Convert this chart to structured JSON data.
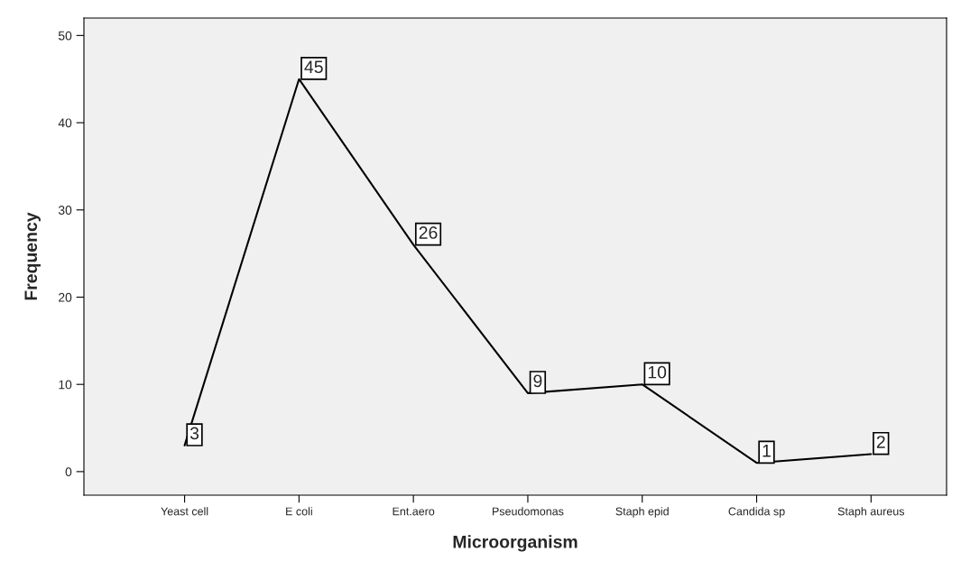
{
  "chart_data": {
    "type": "line",
    "xlabel": "Microorganism",
    "ylabel": "Frequency",
    "categories": [
      "Yeast cell",
      "E coli",
      "Ent.aero",
      "Pseudomonas",
      "Staph epid",
      "Candida sp",
      "Staph aureus"
    ],
    "values": [
      3,
      45,
      26,
      9,
      10,
      1,
      2
    ],
    "color": "#000000",
    "ylim": [
      -2.7,
      52
    ],
    "yticks": [
      0,
      10,
      20,
      30,
      40,
      50
    ],
    "data_labels": true,
    "grid": false,
    "marker": "none",
    "line_style": "solid"
  }
}
